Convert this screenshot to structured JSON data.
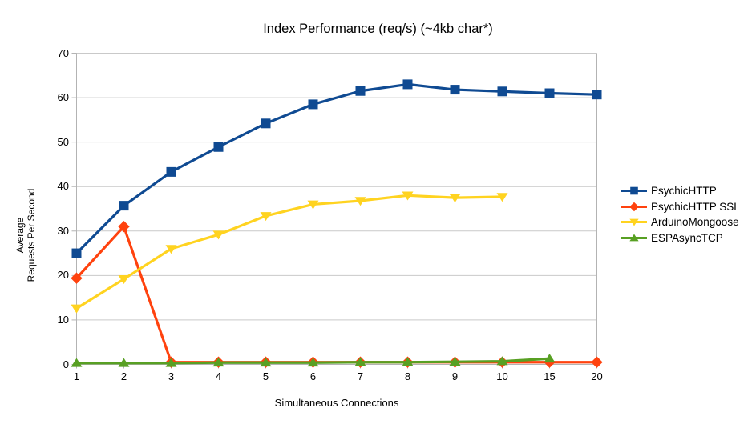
{
  "chart_data": {
    "type": "line",
    "title": "Index Performance (req/s) (~4kb char*)",
    "xlabel": "Simultaneous Connections",
    "ylabel": "Average Requests Per Second",
    "ylabel_lines": [
      "Average",
      "Requests Per Second"
    ],
    "categories": [
      "1",
      "2",
      "3",
      "4",
      "5",
      "6",
      "7",
      "8",
      "9",
      "10",
      "15",
      "20"
    ],
    "ylim": [
      0,
      70
    ],
    "y_tick_step": 10,
    "grid": "horizontal",
    "legend_position": "right",
    "colors": {
      "background": "#ffffff",
      "gridline": "#c9c9c9",
      "axis": "#b3b3b3",
      "text": "#000000"
    },
    "series": [
      {
        "name": "PsychicHTTP",
        "color": "#0f4a92",
        "marker": "square",
        "values": [
          25.0,
          35.7,
          43.3,
          48.9,
          54.2,
          58.5,
          61.5,
          63.0,
          61.8,
          61.4,
          61.0,
          60.7
        ]
      },
      {
        "name": "PsychicHTTP SSL",
        "color": "#ff420e",
        "marker": "diamond",
        "values": [
          19.4,
          31.0,
          0.5,
          0.5,
          0.5,
          0.5,
          0.5,
          0.5,
          0.5,
          0.5,
          0.5,
          0.5
        ]
      },
      {
        "name": "ArduinoMongoose",
        "color": "#ffd320",
        "marker": "triangle-down",
        "values": [
          12.6,
          19.2,
          26.0,
          29.2,
          33.4,
          36.0,
          36.8,
          38.0,
          37.5,
          37.7
        ]
      },
      {
        "name": "ESPAsyncTCP",
        "color": "#58a023",
        "marker": "triangle-up",
        "values": [
          0.3,
          0.3,
          0.3,
          0.4,
          0.4,
          0.4,
          0.5,
          0.5,
          0.6,
          0.7,
          1.3
        ]
      }
    ]
  }
}
